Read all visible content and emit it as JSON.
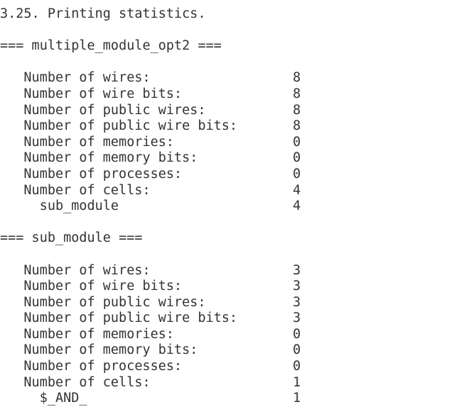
{
  "heading": "3.25. Printing statistics.",
  "sections": [
    {
      "title": "=== multiple_module_opt2 ===",
      "rows": [
        {
          "label": "Number of wires:",
          "value": 8
        },
        {
          "label": "Number of wire bits:",
          "value": 8
        },
        {
          "label": "Number of public wires:",
          "value": 8
        },
        {
          "label": "Number of public wire bits:",
          "value": 8
        },
        {
          "label": "Number of memories:",
          "value": 0
        },
        {
          "label": "Number of memory bits:",
          "value": 0
        },
        {
          "label": "Number of processes:",
          "value": 0
        },
        {
          "label": "Number of cells:",
          "value": 4
        }
      ],
      "cell_types": [
        {
          "name": "sub_module",
          "count": 4
        }
      ]
    },
    {
      "title": "=== sub_module ===",
      "rows": [
        {
          "label": "Number of wires:",
          "value": 3
        },
        {
          "label": "Number of wire bits:",
          "value": 3
        },
        {
          "label": "Number of public wires:",
          "value": 3
        },
        {
          "label": "Number of public wire bits:",
          "value": 3
        },
        {
          "label": "Number of memories:",
          "value": 0
        },
        {
          "label": "Number of memory bits:",
          "value": 0
        },
        {
          "label": "Number of processes:",
          "value": 0
        },
        {
          "label": "Number of cells:",
          "value": 1
        }
      ],
      "cell_types": [
        {
          "name": "$_AND_",
          "count": 1
        }
      ]
    }
  ]
}
